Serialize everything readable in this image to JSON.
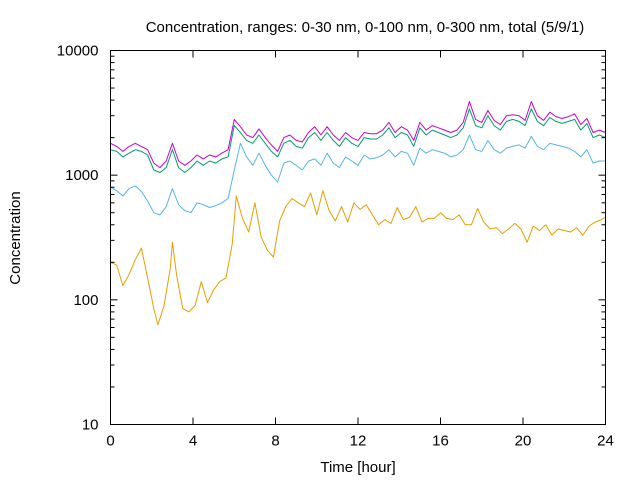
{
  "chart_data": {
    "type": "line",
    "title": "Concentration, ranges: 0-30 nm, 0-100 nm, 0-300 nm, total (5/9/1)",
    "xlabel": "Time [hour]",
    "ylabel": "Concentration",
    "xlim": [
      0,
      24
    ],
    "ylim": [
      10,
      10000
    ],
    "yscale": "log",
    "grid": false,
    "legend": "none",
    "x_ticks": [
      "0",
      "4",
      "8",
      "12",
      "16",
      "20",
      "24"
    ],
    "y_ticks": [
      "10",
      "100",
      "1000",
      "10000"
    ],
    "series": [
      {
        "color": "#e69f00",
        "x": [
          0,
          0.3,
          0.6,
          0.9,
          1.2,
          1.5,
          1.8,
          2.1,
          2.3,
          2.6,
          2.9,
          3.0,
          3.2,
          3.5,
          3.8,
          4.1,
          4.4,
          4.7,
          5.0,
          5.3,
          5.6,
          5.9,
          6.1,
          6.4,
          6.7,
          7.0,
          7.3,
          7.6,
          7.9,
          8.2,
          8.5,
          8.8,
          9.1,
          9.4,
          9.7,
          10.0,
          10.3,
          10.6,
          10.9,
          11.2,
          11.5,
          11.8,
          12.1,
          12.4,
          12.7,
          13.0,
          13.3,
          13.6,
          13.9,
          14.2,
          14.5,
          14.8,
          15.1,
          15.4,
          15.7,
          16.0,
          16.3,
          16.6,
          16.9,
          17.2,
          17.5,
          17.8,
          18.1,
          18.4,
          18.7,
          19.0,
          19.3,
          19.6,
          19.9,
          20.2,
          20.5,
          20.8,
          21.1,
          21.4,
          21.7,
          22.0,
          22.3,
          22.6,
          22.9,
          23.2,
          23.5,
          23.8,
          24.0
        ],
        "y": [
          200,
          190,
          130,
          160,
          210,
          260,
          150,
          85,
          63,
          90,
          180,
          290,
          160,
          85,
          80,
          90,
          140,
          95,
          120,
          140,
          150,
          280,
          680,
          450,
          350,
          600,
          320,
          250,
          220,
          430,
          560,
          650,
          600,
          560,
          720,
          480,
          750,
          520,
          430,
          560,
          420,
          600,
          530,
          580,
          480,
          400,
          440,
          410,
          550,
          440,
          460,
          560,
          420,
          450,
          450,
          500,
          450,
          440,
          480,
          400,
          400,
          540,
          420,
          370,
          380,
          340,
          370,
          410,
          370,
          290,
          390,
          360,
          400,
          330,
          370,
          360,
          350,
          380,
          330,
          390,
          420,
          440,
          460
        ]
      },
      {
        "color": "#56b4e9",
        "x": [
          0,
          0.3,
          0.6,
          0.9,
          1.2,
          1.5,
          1.8,
          2.1,
          2.4,
          2.7,
          3.0,
          3.3,
          3.6,
          3.9,
          4.2,
          4.5,
          4.8,
          5.1,
          5.4,
          5.7,
          6.0,
          6.3,
          6.6,
          6.9,
          7.2,
          7.5,
          7.8,
          8.1,
          8.4,
          8.7,
          9.0,
          9.3,
          9.6,
          9.9,
          10.2,
          10.5,
          10.8,
          11.1,
          11.4,
          11.7,
          12.0,
          12.3,
          12.6,
          12.9,
          13.2,
          13.5,
          13.8,
          14.1,
          14.4,
          14.7,
          15.0,
          15.3,
          15.6,
          15.9,
          16.2,
          16.5,
          16.8,
          17.1,
          17.4,
          17.7,
          18.0,
          18.3,
          18.6,
          18.9,
          19.2,
          19.5,
          19.8,
          20.1,
          20.4,
          20.7,
          21.0,
          21.3,
          21.6,
          21.9,
          22.2,
          22.5,
          22.8,
          23.1,
          23.4,
          23.7,
          24.0
        ],
        "y": [
          800,
          750,
          680,
          780,
          820,
          740,
          620,
          500,
          480,
          560,
          780,
          580,
          520,
          500,
          600,
          580,
          550,
          570,
          600,
          650,
          1100,
          1800,
          1400,
          1200,
          1500,
          1200,
          1000,
          880,
          1250,
          1300,
          1200,
          1100,
          1300,
          1350,
          1200,
          1500,
          1250,
          1150,
          1400,
          1300,
          1200,
          1450,
          1350,
          1380,
          1450,
          1600,
          1400,
          1550,
          1500,
          1200,
          1650,
          1500,
          1600,
          1550,
          1500,
          1400,
          1450,
          1600,
          2100,
          1600,
          1550,
          1900,
          1600,
          1500,
          1650,
          1700,
          1750,
          1650,
          2050,
          1700,
          1600,
          1800,
          1750,
          1700,
          1650,
          1550,
          1400,
          1600,
          1250,
          1300,
          1300
        ]
      },
      {
        "color": "#009e73",
        "x": [
          0,
          0.3,
          0.6,
          0.9,
          1.2,
          1.5,
          1.8,
          2.1,
          2.4,
          2.7,
          3.0,
          3.3,
          3.6,
          3.9,
          4.2,
          4.5,
          4.8,
          5.1,
          5.4,
          5.7,
          6.0,
          6.3,
          6.6,
          6.9,
          7.2,
          7.5,
          7.8,
          8.1,
          8.4,
          8.7,
          9.0,
          9.3,
          9.6,
          9.9,
          10.2,
          10.5,
          10.8,
          11.1,
          11.4,
          11.7,
          12.0,
          12.3,
          12.6,
          12.9,
          13.2,
          13.5,
          13.8,
          14.1,
          14.4,
          14.7,
          15.0,
          15.3,
          15.6,
          15.9,
          16.2,
          16.5,
          16.8,
          17.1,
          17.4,
          17.7,
          18.0,
          18.3,
          18.6,
          18.9,
          19.2,
          19.5,
          19.8,
          20.1,
          20.4,
          20.7,
          21.0,
          21.3,
          21.6,
          21.9,
          22.2,
          22.5,
          22.8,
          23.1,
          23.4,
          23.7,
          24.0
        ],
        "y": [
          1600,
          1550,
          1400,
          1500,
          1600,
          1550,
          1450,
          1100,
          1050,
          1150,
          1600,
          1150,
          1050,
          1150,
          1300,
          1200,
          1300,
          1250,
          1350,
          1400,
          2500,
          2200,
          1900,
          1800,
          2100,
          1800,
          1550,
          1400,
          1800,
          1900,
          1700,
          1650,
          2000,
          2200,
          1900,
          2200,
          1900,
          1700,
          2000,
          1800,
          1700,
          2000,
          1950,
          1950,
          2100,
          2400,
          2000,
          2200,
          2100,
          1700,
          2400,
          2100,
          2300,
          2200,
          2100,
          2000,
          2100,
          2400,
          3400,
          2500,
          2400,
          3000,
          2500,
          2300,
          2700,
          2800,
          2700,
          2500,
          3400,
          2700,
          2500,
          2900,
          2700,
          2600,
          2700,
          2800,
          2300,
          2600,
          2000,
          2100,
          2000
        ]
      },
      {
        "color": "#cc00cc",
        "x": [
          0,
          0.3,
          0.6,
          0.9,
          1.2,
          1.5,
          1.8,
          2.1,
          2.4,
          2.7,
          3.0,
          3.3,
          3.6,
          3.9,
          4.2,
          4.5,
          4.8,
          5.1,
          5.4,
          5.7,
          6.0,
          6.3,
          6.6,
          6.9,
          7.2,
          7.5,
          7.8,
          8.1,
          8.4,
          8.7,
          9.0,
          9.3,
          9.6,
          9.9,
          10.2,
          10.5,
          10.8,
          11.1,
          11.4,
          11.7,
          12.0,
          12.3,
          12.6,
          12.9,
          13.2,
          13.5,
          13.8,
          14.1,
          14.4,
          14.7,
          15.0,
          15.3,
          15.6,
          15.9,
          16.2,
          16.5,
          16.8,
          17.1,
          17.4,
          17.7,
          18.0,
          18.3,
          18.6,
          18.9,
          19.2,
          19.5,
          19.8,
          20.1,
          20.4,
          20.7,
          21.0,
          21.3,
          21.6,
          21.9,
          22.2,
          22.5,
          22.8,
          23.1,
          23.4,
          23.7,
          24.0
        ],
        "y": [
          1800,
          1700,
          1550,
          1700,
          1800,
          1700,
          1600,
          1250,
          1150,
          1300,
          1800,
          1300,
          1200,
          1300,
          1450,
          1350,
          1450,
          1400,
          1500,
          1600,
          2800,
          2450,
          2100,
          2000,
          2350,
          2000,
          1750,
          1550,
          2000,
          2100,
          1900,
          1850,
          2200,
          2450,
          2100,
          2450,
          2100,
          1900,
          2200,
          2000,
          1900,
          2200,
          2150,
          2150,
          2300,
          2650,
          2200,
          2450,
          2300,
          1900,
          2650,
          2300,
          2500,
          2400,
          2300,
          2200,
          2300,
          2650,
          3900,
          2800,
          2650,
          3300,
          2750,
          2550,
          3000,
          3050,
          3000,
          2750,
          3900,
          3000,
          2750,
          3200,
          2950,
          2850,
          2950,
          3100,
          2550,
          2850,
          2200,
          2300,
          2200
        ]
      }
    ]
  }
}
